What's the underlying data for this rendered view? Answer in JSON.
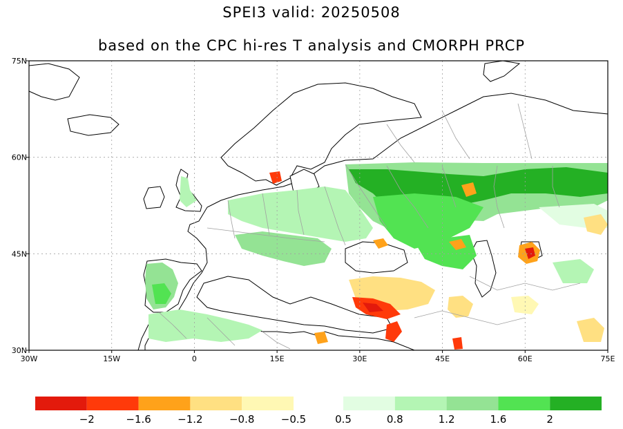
{
  "title": "SPEI3  valid: 20250508",
  "subtitle": "based on the CPC hi-res T analysis and CMORPH PRCP",
  "map": {
    "lon_ticks": [
      "30W",
      "15W",
      "0",
      "15E",
      "30E",
      "45E",
      "60E",
      "75E"
    ],
    "lat_ticks": [
      "75N",
      "60N",
      "45N",
      "30N"
    ],
    "lon_range": [
      -30,
      75
    ],
    "lat_range": [
      30,
      75
    ],
    "gridlines": true,
    "ocean_color": "#ffffff",
    "land_outline_color": "#000000",
    "border_color": "#a0a0a0"
  },
  "colorbar": {
    "dry_colors": [
      "#e31a0c",
      "#ff3a0a",
      "#ffa21a",
      "#ffe082",
      "#fff8b4"
    ],
    "wet_colors": [
      "#e2fde2",
      "#b4f5b4",
      "#94e394",
      "#52e352",
      "#24b024"
    ],
    "labels": [
      "−2",
      "−1.6",
      "−1.2",
      "−0.8",
      "−0.5",
      "0.5",
      "0.8",
      "1.2",
      "1.6",
      "2"
    ]
  }
}
